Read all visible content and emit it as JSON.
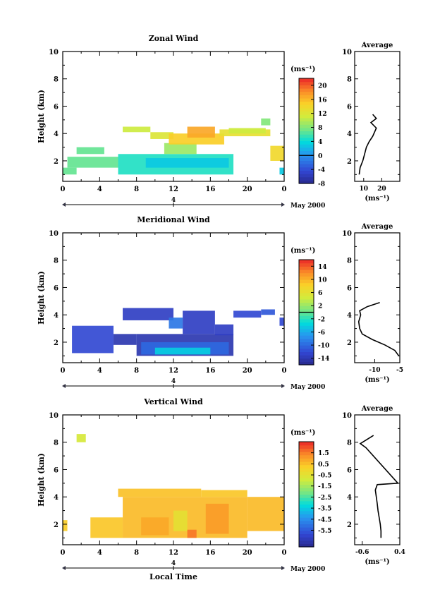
{
  "chart_data": [
    {
      "type": "heatmap",
      "title": "Zonal Wind",
      "ylabel": "Height (km)",
      "xlabel": "",
      "xlim": [
        0,
        24
      ],
      "ylim": [
        0.5,
        10
      ],
      "xticks": [
        "0",
        "4",
        "8",
        "12",
        "16",
        "20",
        "0"
      ],
      "yticks": [
        "2",
        "4",
        "6",
        "8",
        "10"
      ],
      "date_marker": "4",
      "date_label": "May 2000",
      "colorbar": {
        "unit": "(ms⁻¹)",
        "range": [
          -8,
          22
        ],
        "ticks": [
          "20",
          "16",
          "12",
          "8",
          "4",
          "0",
          "-4",
          "-8"
        ],
        "tick_values": [
          20,
          16,
          12,
          8,
          4,
          0,
          -4,
          -8
        ],
        "zero_line": 0
      },
      "cells": [
        {
          "t0": 6.5,
          "t1": 9.5,
          "h0": 4.1,
          "h1": 4.5,
          "v": 11
        },
        {
          "t0": 9.5,
          "t1": 12,
          "h0": 3.6,
          "h1": 4.1,
          "v": 12
        },
        {
          "t0": 1.5,
          "t1": 4.5,
          "h0": 2.5,
          "h1": 3.0,
          "v": 7
        },
        {
          "t0": 0.5,
          "t1": 6,
          "h0": 1.5,
          "h1": 2.3,
          "v": 7
        },
        {
          "t0": 0.0,
          "t1": 1.5,
          "h0": 1.0,
          "h1": 1.5,
          "v": 7
        },
        {
          "t0": 6,
          "t1": 18.5,
          "h0": 1.0,
          "h1": 2.5,
          "v": 5
        },
        {
          "t0": 9,
          "t1": 18,
          "h0": 1.5,
          "h1": 2.2,
          "v": 3
        },
        {
          "t0": 11,
          "t1": 14.5,
          "h0": 2.5,
          "h1": 3.3,
          "v": 9
        },
        {
          "t0": 11.5,
          "t1": 17.5,
          "h0": 3.2,
          "h1": 4.0,
          "v": 15
        },
        {
          "t0": 13.5,
          "t1": 16.5,
          "h0": 3.7,
          "h1": 4.5,
          "v": 17
        },
        {
          "t0": 17,
          "t1": 22.5,
          "h0": 3.8,
          "h1": 4.3,
          "v": 13
        },
        {
          "t0": 18,
          "t1": 22,
          "h0": 4.0,
          "h1": 4.4,
          "v": 11
        },
        {
          "t0": 21.5,
          "t1": 22.5,
          "h0": 4.6,
          "h1": 5.1,
          "v": 8
        },
        {
          "t0": 22.5,
          "t1": 24,
          "h0": 2.0,
          "h1": 3.1,
          "v": 14
        },
        {
          "t0": 23.5,
          "t1": 24,
          "h0": 1.0,
          "h1": 1.5,
          "v": 3
        }
      ],
      "average_profile": {
        "title": "Average",
        "xlabel": "(ms⁻¹)",
        "xlim": [
          5,
          30
        ],
        "xticks": [
          "10",
          "20"
        ],
        "xtick_values": [
          10,
          20
        ],
        "yticks": [
          "2",
          "4",
          "6",
          "8",
          "10"
        ],
        "ylim": [
          0.5,
          10
        ],
        "points": [
          [
            7.5,
            1.0
          ],
          [
            8,
            1.5
          ],
          [
            9.5,
            2.0
          ],
          [
            10.5,
            2.5
          ],
          [
            11.5,
            3.0
          ],
          [
            13,
            3.4
          ],
          [
            15,
            3.8
          ],
          [
            17,
            4.4
          ],
          [
            14,
            4.8
          ],
          [
            17,
            5.1
          ],
          [
            15,
            5.4
          ]
        ]
      }
    },
    {
      "type": "heatmap",
      "title": "Meridional Wind",
      "ylabel": "Height (km)",
      "xlabel": "",
      "xlim": [
        0,
        24
      ],
      "ylim": [
        0.5,
        10
      ],
      "xticks": [
        "0",
        "4",
        "8",
        "12",
        "16",
        "20",
        "0"
      ],
      "yticks": [
        "2",
        "4",
        "6",
        "8",
        "10"
      ],
      "date_marker": "4",
      "date_label": "May 2000",
      "colorbar": {
        "unit": "(ms⁻¹)",
        "range": [
          -16,
          16
        ],
        "ticks": [
          "14",
          "10",
          "6",
          "2",
          "-2",
          "-6",
          "-10",
          "-14"
        ],
        "tick_values": [
          14,
          10,
          6,
          2,
          -2,
          -6,
          -10,
          -14
        ],
        "zero_line": 0
      },
      "cells": [
        {
          "t0": 1.0,
          "t1": 5.5,
          "h0": 1.2,
          "h1": 3.2,
          "v": -12
        },
        {
          "t0": 5.5,
          "t1": 8,
          "h0": 1.8,
          "h1": 2.6,
          "v": -14
        },
        {
          "t0": 6.5,
          "t1": 12,
          "h0": 3.6,
          "h1": 4.5,
          "v": -13
        },
        {
          "t0": 8,
          "t1": 18.5,
          "h0": 1.0,
          "h1": 2.6,
          "v": -14
        },
        {
          "t0": 8.5,
          "t1": 18,
          "h0": 1.1,
          "h1": 2.0,
          "v": -10
        },
        {
          "t0": 10,
          "t1": 16,
          "h0": 1.1,
          "h1": 1.6,
          "v": -4
        },
        {
          "t0": 13,
          "t1": 16.5,
          "h0": 2.6,
          "h1": 4.3,
          "v": -13
        },
        {
          "t0": 11.5,
          "t1": 13,
          "h0": 3.0,
          "h1": 3.8,
          "v": -9
        },
        {
          "t0": 16.5,
          "t1": 18.5,
          "h0": 2.5,
          "h1": 3.3,
          "v": -13
        },
        {
          "t0": 18.5,
          "t1": 21.5,
          "h0": 3.8,
          "h1": 4.3,
          "v": -12
        },
        {
          "t0": 21.5,
          "t1": 23,
          "h0": 4.0,
          "h1": 4.4,
          "v": -11
        },
        {
          "t0": 23.5,
          "t1": 24,
          "h0": 3.2,
          "h1": 3.8,
          "v": -12
        }
      ],
      "average_profile": {
        "title": "Average",
        "xlabel": "(ms⁻¹)",
        "xlim": [
          -14,
          -5
        ],
        "xticks": [
          "-10",
          "-5"
        ],
        "xtick_values": [
          -10,
          -5
        ],
        "yticks": [
          "2",
          "4",
          "6",
          "8",
          "10"
        ],
        "ylim": [
          0.5,
          10
        ],
        "points": [
          [
            -5.2,
            1.0
          ],
          [
            -6,
            1.4
          ],
          [
            -8,
            1.8
          ],
          [
            -10.5,
            2.2
          ],
          [
            -12.5,
            2.6
          ],
          [
            -13,
            3.0
          ],
          [
            -13.2,
            3.5
          ],
          [
            -12.8,
            4.0
          ],
          [
            -13,
            4.3
          ],
          [
            -11.5,
            4.6
          ],
          [
            -9,
            4.9
          ]
        ]
      }
    },
    {
      "type": "heatmap",
      "title": "Vertical Wind",
      "ylabel": "Height (km)",
      "xlabel": "Local Time",
      "xlim": [
        0,
        24
      ],
      "ylim": [
        0.5,
        10
      ],
      "xticks": [
        "0",
        "4",
        "8",
        "12",
        "16",
        "20",
        "0"
      ],
      "yticks": [
        "2",
        "4",
        "6",
        "8",
        "10"
      ],
      "date_marker": "4",
      "date_label": "May 2000",
      "colorbar": {
        "unit": "(ms⁻¹)",
        "range": [
          -7,
          2.5
        ],
        "ticks": [
          "1.5",
          "0.5",
          "-0.5",
          "-1.5",
          "-2.5",
          "-3.5",
          "-4.5",
          "-5.5"
        ],
        "tick_values": [
          1.5,
          0.5,
          -0.5,
          -1.5,
          -2.5,
          -3.5,
          -4.5,
          -5.5
        ],
        "zero_line": null
      },
      "cells": [
        {
          "t0": 1.5,
          "t1": 2.5,
          "h0": 8.0,
          "h1": 8.6,
          "v": -0.8
        },
        {
          "t0": 0.0,
          "t1": 0.5,
          "h0": 1.5,
          "h1": 2.3,
          "v": 0.3
        },
        {
          "t0": 3,
          "t1": 6.5,
          "h0": 1.0,
          "h1": 2.5,
          "v": 0.4
        },
        {
          "t0": 6.5,
          "t1": 20,
          "h0": 1.0,
          "h1": 4.0,
          "v": 0.6
        },
        {
          "t0": 8.5,
          "t1": 11.5,
          "h0": 1.2,
          "h1": 2.5,
          "v": 0.9
        },
        {
          "t0": 12,
          "t1": 13.5,
          "h0": 1.5,
          "h1": 3.0,
          "v": -0.4
        },
        {
          "t0": 15.5,
          "t1": 18,
          "h0": 1.3,
          "h1": 3.5,
          "v": 1.1
        },
        {
          "t0": 13.5,
          "t1": 14.5,
          "h0": 1.0,
          "h1": 1.6,
          "v": 1.6
        },
        {
          "t0": 20,
          "t1": 24,
          "h0": 1.5,
          "h1": 4.0,
          "v": 0.6
        },
        {
          "t0": 6,
          "t1": 15,
          "h0": 4.0,
          "h1": 4.6,
          "v": 0.5
        },
        {
          "t0": 15,
          "t1": 20,
          "h0": 4.0,
          "h1": 4.5,
          "v": 0.4
        }
      ],
      "average_profile": {
        "title": "Average",
        "xlabel": "(ms⁻¹)",
        "xlim": [
          -0.8,
          0.4
        ],
        "xticks": [
          "-0.6",
          "0.4"
        ],
        "xtick_values": [
          -0.6,
          0.4
        ],
        "yticks": [
          "2",
          "4",
          "6",
          "8",
          "10"
        ],
        "ylim": [
          0.5,
          10
        ],
        "points": [
          [
            -0.1,
            1.0
          ],
          [
            -0.1,
            1.5
          ],
          [
            -0.12,
            2.0
          ],
          [
            -0.15,
            2.5
          ],
          [
            -0.18,
            3.0
          ],
          [
            -0.2,
            3.5
          ],
          [
            -0.25,
            4.5
          ],
          [
            -0.2,
            4.9
          ],
          [
            0.35,
            5.0
          ],
          [
            -0.5,
            7.6
          ],
          [
            -0.65,
            7.9
          ],
          [
            -0.3,
            8.5
          ]
        ]
      }
    }
  ]
}
